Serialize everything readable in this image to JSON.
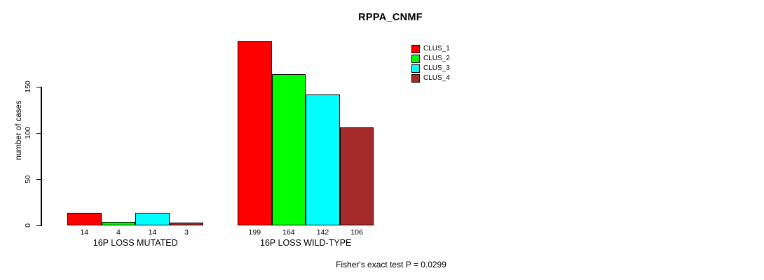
{
  "chart_data": {
    "type": "bar",
    "title": "RPPA_CNMF",
    "ylabel": "number of cases",
    "xlabel": "",
    "categories": [
      "16P LOSS MUTATED",
      "16P LOSS WILD-TYPE"
    ],
    "series": [
      {
        "name": "CLUS_1",
        "color": "#ff0000",
        "values": [
          14,
          199
        ]
      },
      {
        "name": "CLUS_2",
        "color": "#00ff00",
        "values": [
          4,
          164
        ]
      },
      {
        "name": "CLUS_3",
        "color": "#00ffff",
        "values": [
          14,
          142
        ]
      },
      {
        "name": "CLUS_4",
        "color": "#a52a2a",
        "values": [
          3,
          106
        ]
      }
    ],
    "yticks": [
      0,
      50,
      100,
      150
    ],
    "ylim": [
      0,
      199
    ],
    "grid": false,
    "legend_position": "top-right",
    "bar_value_labels_visible": true,
    "annotation": "Fisher's exact test P = 0.0299"
  }
}
